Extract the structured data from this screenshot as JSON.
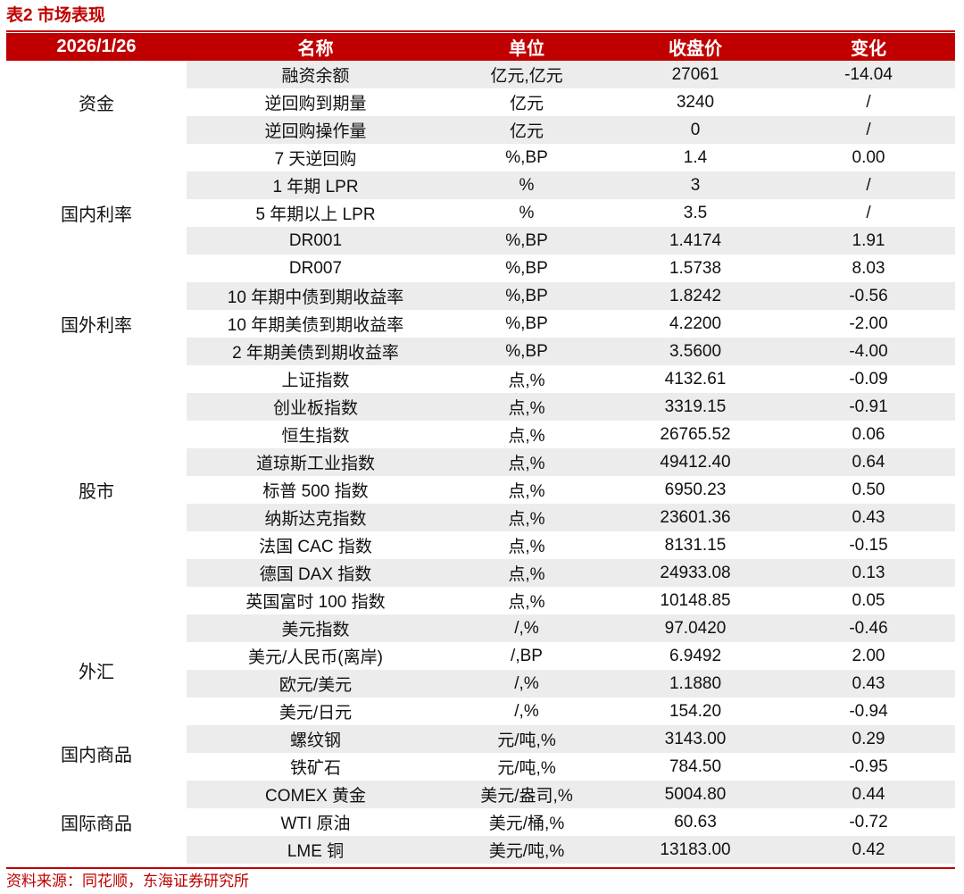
{
  "caption": "表2 市场表现",
  "header": {
    "date": "2026/1/26",
    "name": "名称",
    "unit": "单位",
    "close": "收盘价",
    "change": "变化"
  },
  "groups": [
    {
      "category": "资金",
      "rows": [
        {
          "name": "融资余额",
          "unit": "亿元,亿元",
          "close": "27061",
          "change": "-14.04"
        },
        {
          "name": "逆回购到期量",
          "unit": "亿元",
          "close": "3240",
          "change": "/"
        },
        {
          "name": "逆回购操作量",
          "unit": "亿元",
          "close": "0",
          "change": "/"
        }
      ]
    },
    {
      "category": "国内利率",
      "rows": [
        {
          "name": "7 天逆回购",
          "unit": "%,BP",
          "close": "1.4",
          "change": "0.00"
        },
        {
          "name": "1 年期 LPR",
          "unit": "%",
          "close": "3",
          "change": "/"
        },
        {
          "name": "5 年期以上 LPR",
          "unit": "%",
          "close": "3.5",
          "change": "/"
        },
        {
          "name": "DR001",
          "unit": "%,BP",
          "close": "1.4174",
          "change": "1.91"
        },
        {
          "name": "DR007",
          "unit": "%,BP",
          "close": "1.5738",
          "change": "8.03"
        }
      ]
    },
    {
      "category": "国外利率",
      "rows": [
        {
          "name": "10 年期中债到期收益率",
          "unit": "%,BP",
          "close": "1.8242",
          "change": "-0.56"
        },
        {
          "name": "10 年期美债到期收益率",
          "unit": "%,BP",
          "close": "4.2200",
          "change": "-2.00"
        },
        {
          "name": "2 年期美债到期收益率",
          "unit": "%,BP",
          "close": "3.5600",
          "change": "-4.00"
        }
      ]
    },
    {
      "category": "股市",
      "rows": [
        {
          "name": "上证指数",
          "unit": "点,%",
          "close": "4132.61",
          "change": "-0.09"
        },
        {
          "name": "创业板指数",
          "unit": "点,%",
          "close": "3319.15",
          "change": "-0.91"
        },
        {
          "name": "恒生指数",
          "unit": "点,%",
          "close": "26765.52",
          "change": "0.06"
        },
        {
          "name": "道琼斯工业指数",
          "unit": "点,%",
          "close": "49412.40",
          "change": "0.64"
        },
        {
          "name": "标普 500 指数",
          "unit": "点,%",
          "close": "6950.23",
          "change": "0.50"
        },
        {
          "name": "纳斯达克指数",
          "unit": "点,%",
          "close": "23601.36",
          "change": "0.43"
        },
        {
          "name": "法国 CAC 指数",
          "unit": "点,%",
          "close": "8131.15",
          "change": "-0.15"
        },
        {
          "name": "德国 DAX 指数",
          "unit": "点,%",
          "close": "24933.08",
          "change": "0.13"
        },
        {
          "name": "英国富时 100 指数",
          "unit": "点,%",
          "close": "10148.85",
          "change": "0.05"
        }
      ]
    },
    {
      "category": "外汇",
      "rows": [
        {
          "name": "美元指数",
          "unit": "/,%",
          "close": "97.0420",
          "change": "-0.46"
        },
        {
          "name": "美元/人民币(离岸)",
          "unit": "/,BP",
          "close": "6.9492",
          "change": "2.00"
        },
        {
          "name": "欧元/美元",
          "unit": "/,%",
          "close": "1.1880",
          "change": "0.43"
        },
        {
          "name": "美元/日元",
          "unit": "/,%",
          "close": "154.20",
          "change": "-0.94"
        }
      ]
    },
    {
      "category": "国内商品",
      "rows": [
        {
          "name": "螺纹钢",
          "unit": "元/吨,%",
          "close": "3143.00",
          "change": "0.29"
        },
        {
          "name": "铁矿石",
          "unit": "元/吨,%",
          "close": "784.50",
          "change": "-0.95"
        }
      ]
    },
    {
      "category": "国际商品",
      "rows": [
        {
          "name": "COMEX 黄金",
          "unit": "美元/盎司,%",
          "close": "5004.80",
          "change": "0.44"
        },
        {
          "name": "WTI 原油",
          "unit": "美元/桶,%",
          "close": "60.63",
          "change": "-0.72"
        },
        {
          "name": "LME 铜",
          "unit": "美元/吨,%",
          "close": "13183.00",
          "change": "0.42"
        }
      ]
    }
  ],
  "source": "资料来源：同花顺，东海证券研究所",
  "colors": {
    "accent": "#c00000",
    "row_shade": "#ececec"
  }
}
